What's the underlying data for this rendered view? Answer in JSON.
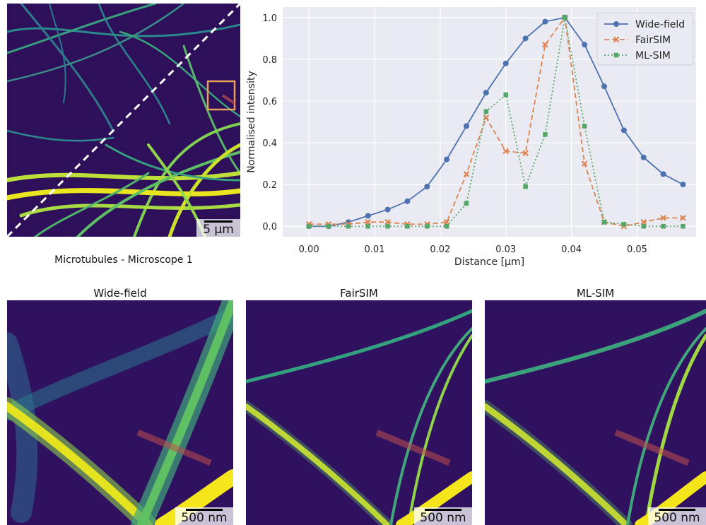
{
  "left_caption": "Microtubules - Microscope 1",
  "overview_scale": "5 µm",
  "insets": [
    {
      "title": "Wide-field",
      "scale": "500 nm"
    },
    {
      "title": "FairSIM",
      "scale": "500 nm"
    },
    {
      "title": "ML-SIM",
      "scale": "500 nm"
    }
  ],
  "colors": {
    "wide_field": "#4c72b0",
    "fairsim": "#dd8452",
    "mlsim": "#55a868",
    "roi_box": "#e8a15a",
    "image_bg": "#2f0f5c"
  },
  "chart_data": {
    "type": "line",
    "xlabel": "Distance [µm]",
    "ylabel": "Normalised intensity",
    "xlim": [
      -0.004,
      0.059
    ],
    "ylim": [
      -0.05,
      1.05
    ],
    "xticks": [
      "0.00",
      "0.01",
      "0.02",
      "0.03",
      "0.04",
      "0.05"
    ],
    "yticks": [
      "0.0",
      "0.2",
      "0.4",
      "0.6",
      "0.8",
      "1.0"
    ],
    "grid": true,
    "legend": "top-right",
    "x": [
      0.0,
      0.003,
      0.006,
      0.009,
      0.012,
      0.015,
      0.018,
      0.021,
      0.024,
      0.027,
      0.03,
      0.033,
      0.036,
      0.039,
      0.042,
      0.045,
      0.048,
      0.051,
      0.054,
      0.057
    ],
    "series": [
      {
        "name": "Wide-field",
        "marker": "circle",
        "dash": "solid",
        "values": [
          0.0,
          0.0,
          0.02,
          0.05,
          0.08,
          0.12,
          0.19,
          0.32,
          0.48,
          0.64,
          0.78,
          0.9,
          0.98,
          1.0,
          0.87,
          0.67,
          0.46,
          0.33,
          0.25,
          0.2
        ]
      },
      {
        "name": "FairSIM",
        "marker": "x",
        "dash": "dashed",
        "values": [
          0.01,
          0.01,
          0.01,
          0.02,
          0.02,
          0.01,
          0.01,
          0.02,
          0.25,
          0.52,
          0.36,
          0.35,
          0.87,
          1.0,
          0.3,
          0.02,
          0.0,
          0.02,
          0.04,
          0.04
        ]
      },
      {
        "name": "ML-SIM",
        "marker": "square",
        "dash": "dotted",
        "values": [
          0.0,
          0.0,
          0.0,
          0.0,
          0.0,
          0.0,
          0.0,
          0.0,
          0.11,
          0.55,
          0.63,
          0.19,
          0.44,
          1.0,
          0.48,
          0.02,
          0.01,
          0.0,
          0.0,
          0.0
        ]
      }
    ]
  }
}
